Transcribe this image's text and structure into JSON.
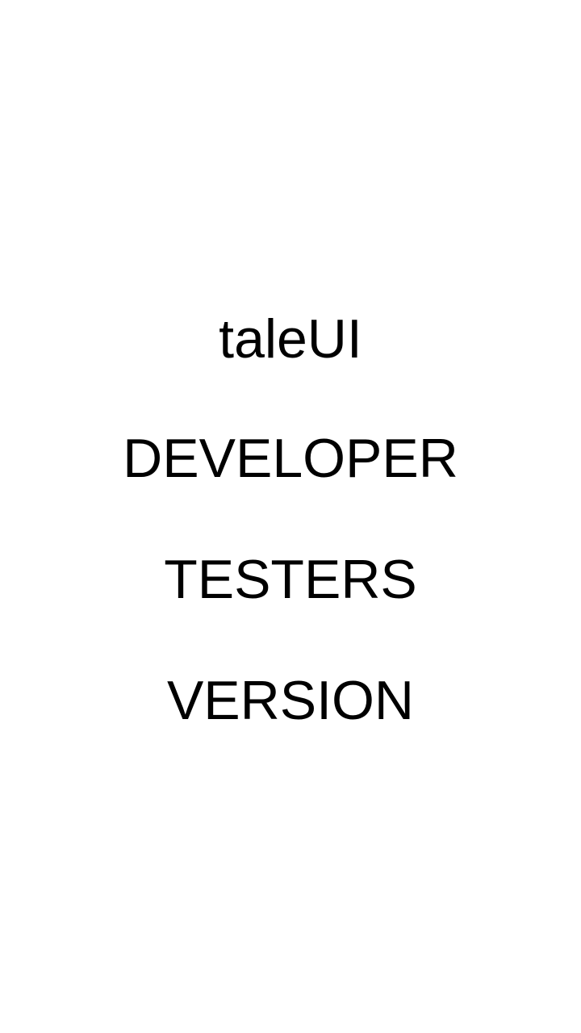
{
  "splash": {
    "lines": [
      "taleUI",
      "DEVELOPER",
      "TESTERS",
      "VERSION"
    ]
  },
  "colors": {
    "background": "#ffffff",
    "text": "#000000"
  }
}
